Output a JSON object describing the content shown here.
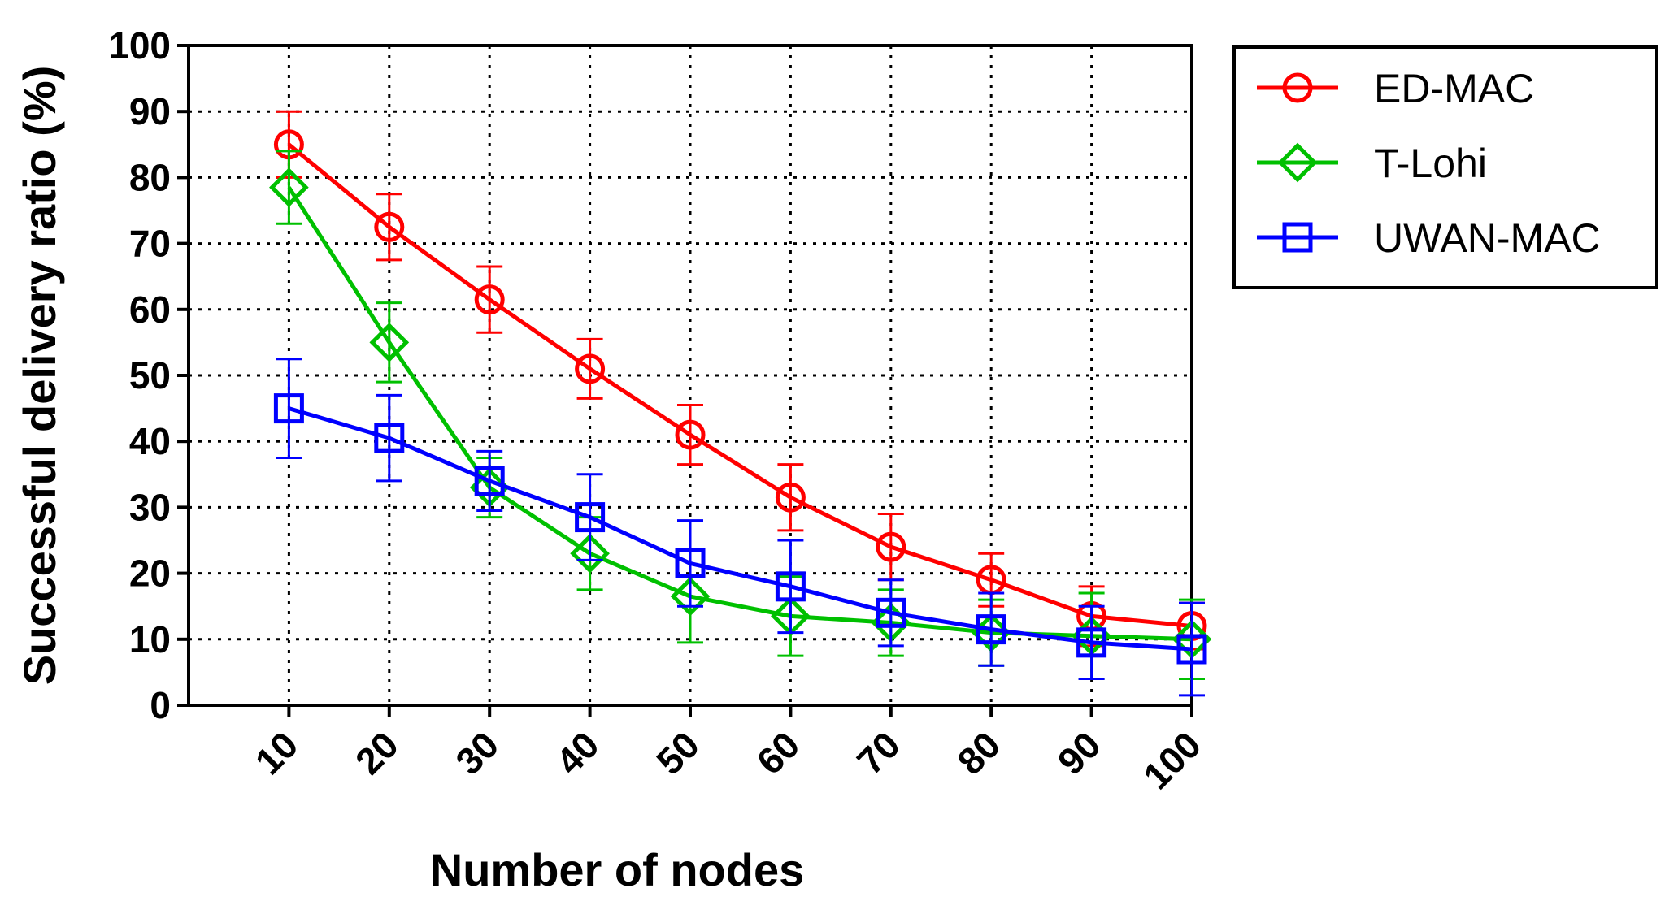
{
  "chart_data": {
    "type": "line",
    "x": [
      10,
      20,
      30,
      40,
      50,
      60,
      70,
      80,
      90,
      100
    ],
    "xlabel": "Number of nodes",
    "ylabel": "Successful delivery ratio (%)",
    "ylim": [
      0,
      100
    ],
    "yticks": [
      0,
      10,
      20,
      30,
      40,
      50,
      60,
      70,
      80,
      90,
      100
    ],
    "grid": true,
    "legend_position": "outside-top-right",
    "series": [
      {
        "name": "ED-MAC",
        "color": "#ff0000",
        "marker": "circle",
        "values": [
          85,
          72.5,
          61.5,
          51,
          41,
          31.5,
          24,
          19,
          13.5,
          12
        ],
        "error": [
          5,
          5,
          5,
          4.5,
          4.5,
          5,
          5,
          4,
          4.5,
          3.5
        ]
      },
      {
        "name": "T-Lohi",
        "color": "#00c000",
        "marker": "diamond",
        "values": [
          78.5,
          55,
          33,
          23,
          16.5,
          13.5,
          12.5,
          11,
          10.5,
          10
        ],
        "error": [
          5.5,
          6,
          4.5,
          5.5,
          7,
          6,
          5,
          5,
          6.5,
          6
        ]
      },
      {
        "name": "UWAN-MAC",
        "color": "#0000ff",
        "marker": "square",
        "values": [
          45,
          40.5,
          34,
          28.5,
          21.5,
          18,
          14,
          11.5,
          9.5,
          8.5
        ],
        "error": [
          7.5,
          6.5,
          4.5,
          6.5,
          6.5,
          7,
          5,
          5.5,
          5.5,
          7
        ]
      }
    ]
  }
}
